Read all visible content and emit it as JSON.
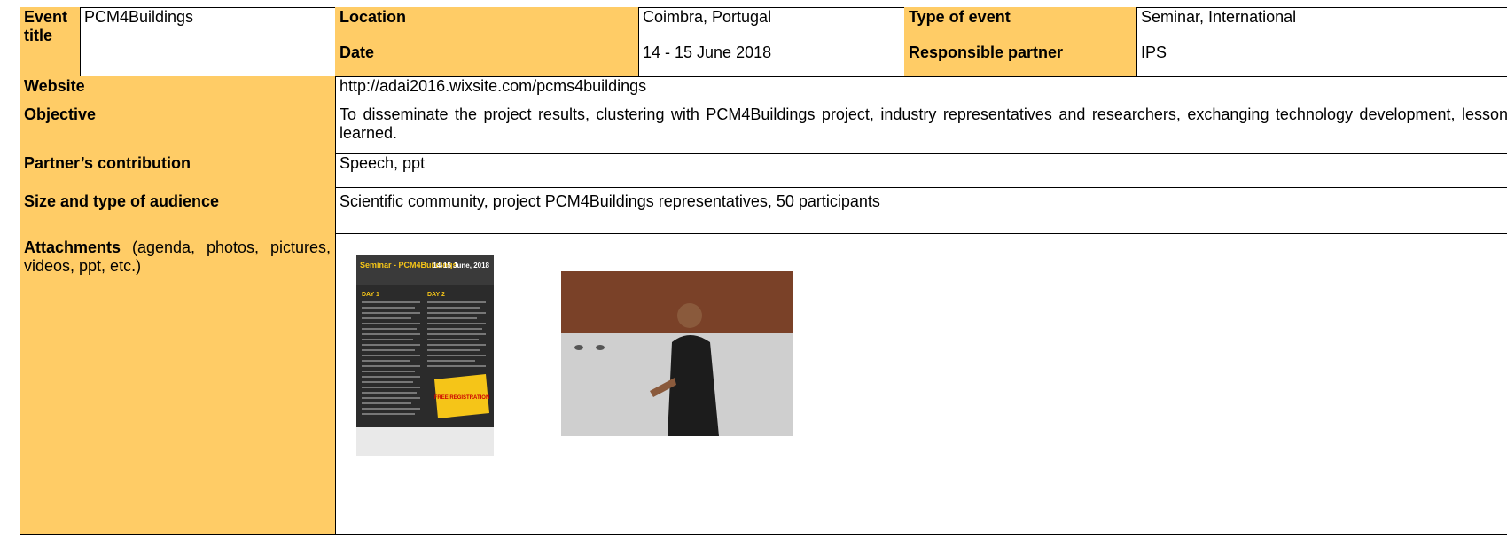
{
  "header": {
    "event_title_label": "Event title",
    "event_title": "PCM4Buildings",
    "location_label": "Location",
    "location": "Coimbra, Portugal",
    "type_label": "Type of event",
    "type": "Seminar, International",
    "date_label": "Date",
    "date": "14 - 15 June 2018",
    "partner_label": "Responsible partner",
    "partner": "IPS"
  },
  "rows": [
    {
      "label": "Website",
      "value": "http://adai2016.wixsite.com/pcms4buildings"
    },
    {
      "label": "Objective",
      "value": "To disseminate the project results, clustering with PCM4Buildings project, industry representatives and researchers, exchanging technology development, lessons learned."
    },
    {
      "label": "Partner’s contribution",
      "value": "Speech, ppt"
    },
    {
      "label": "Size and type of audience",
      "value": "Scientific community, project PCM4Buildings representatives, 50 participants"
    }
  ],
  "attachments": {
    "label": "Attachments",
    "note": "(agenda, photos, pictures, videos, ppt, etc.)"
  },
  "poster": {
    "title": "Seminar - PCM4Buildings",
    "dates": "14-15 June, 2018",
    "day1": "DAY 1",
    "day2": "DAY 2",
    "free": "FREE REGISTRATION"
  }
}
